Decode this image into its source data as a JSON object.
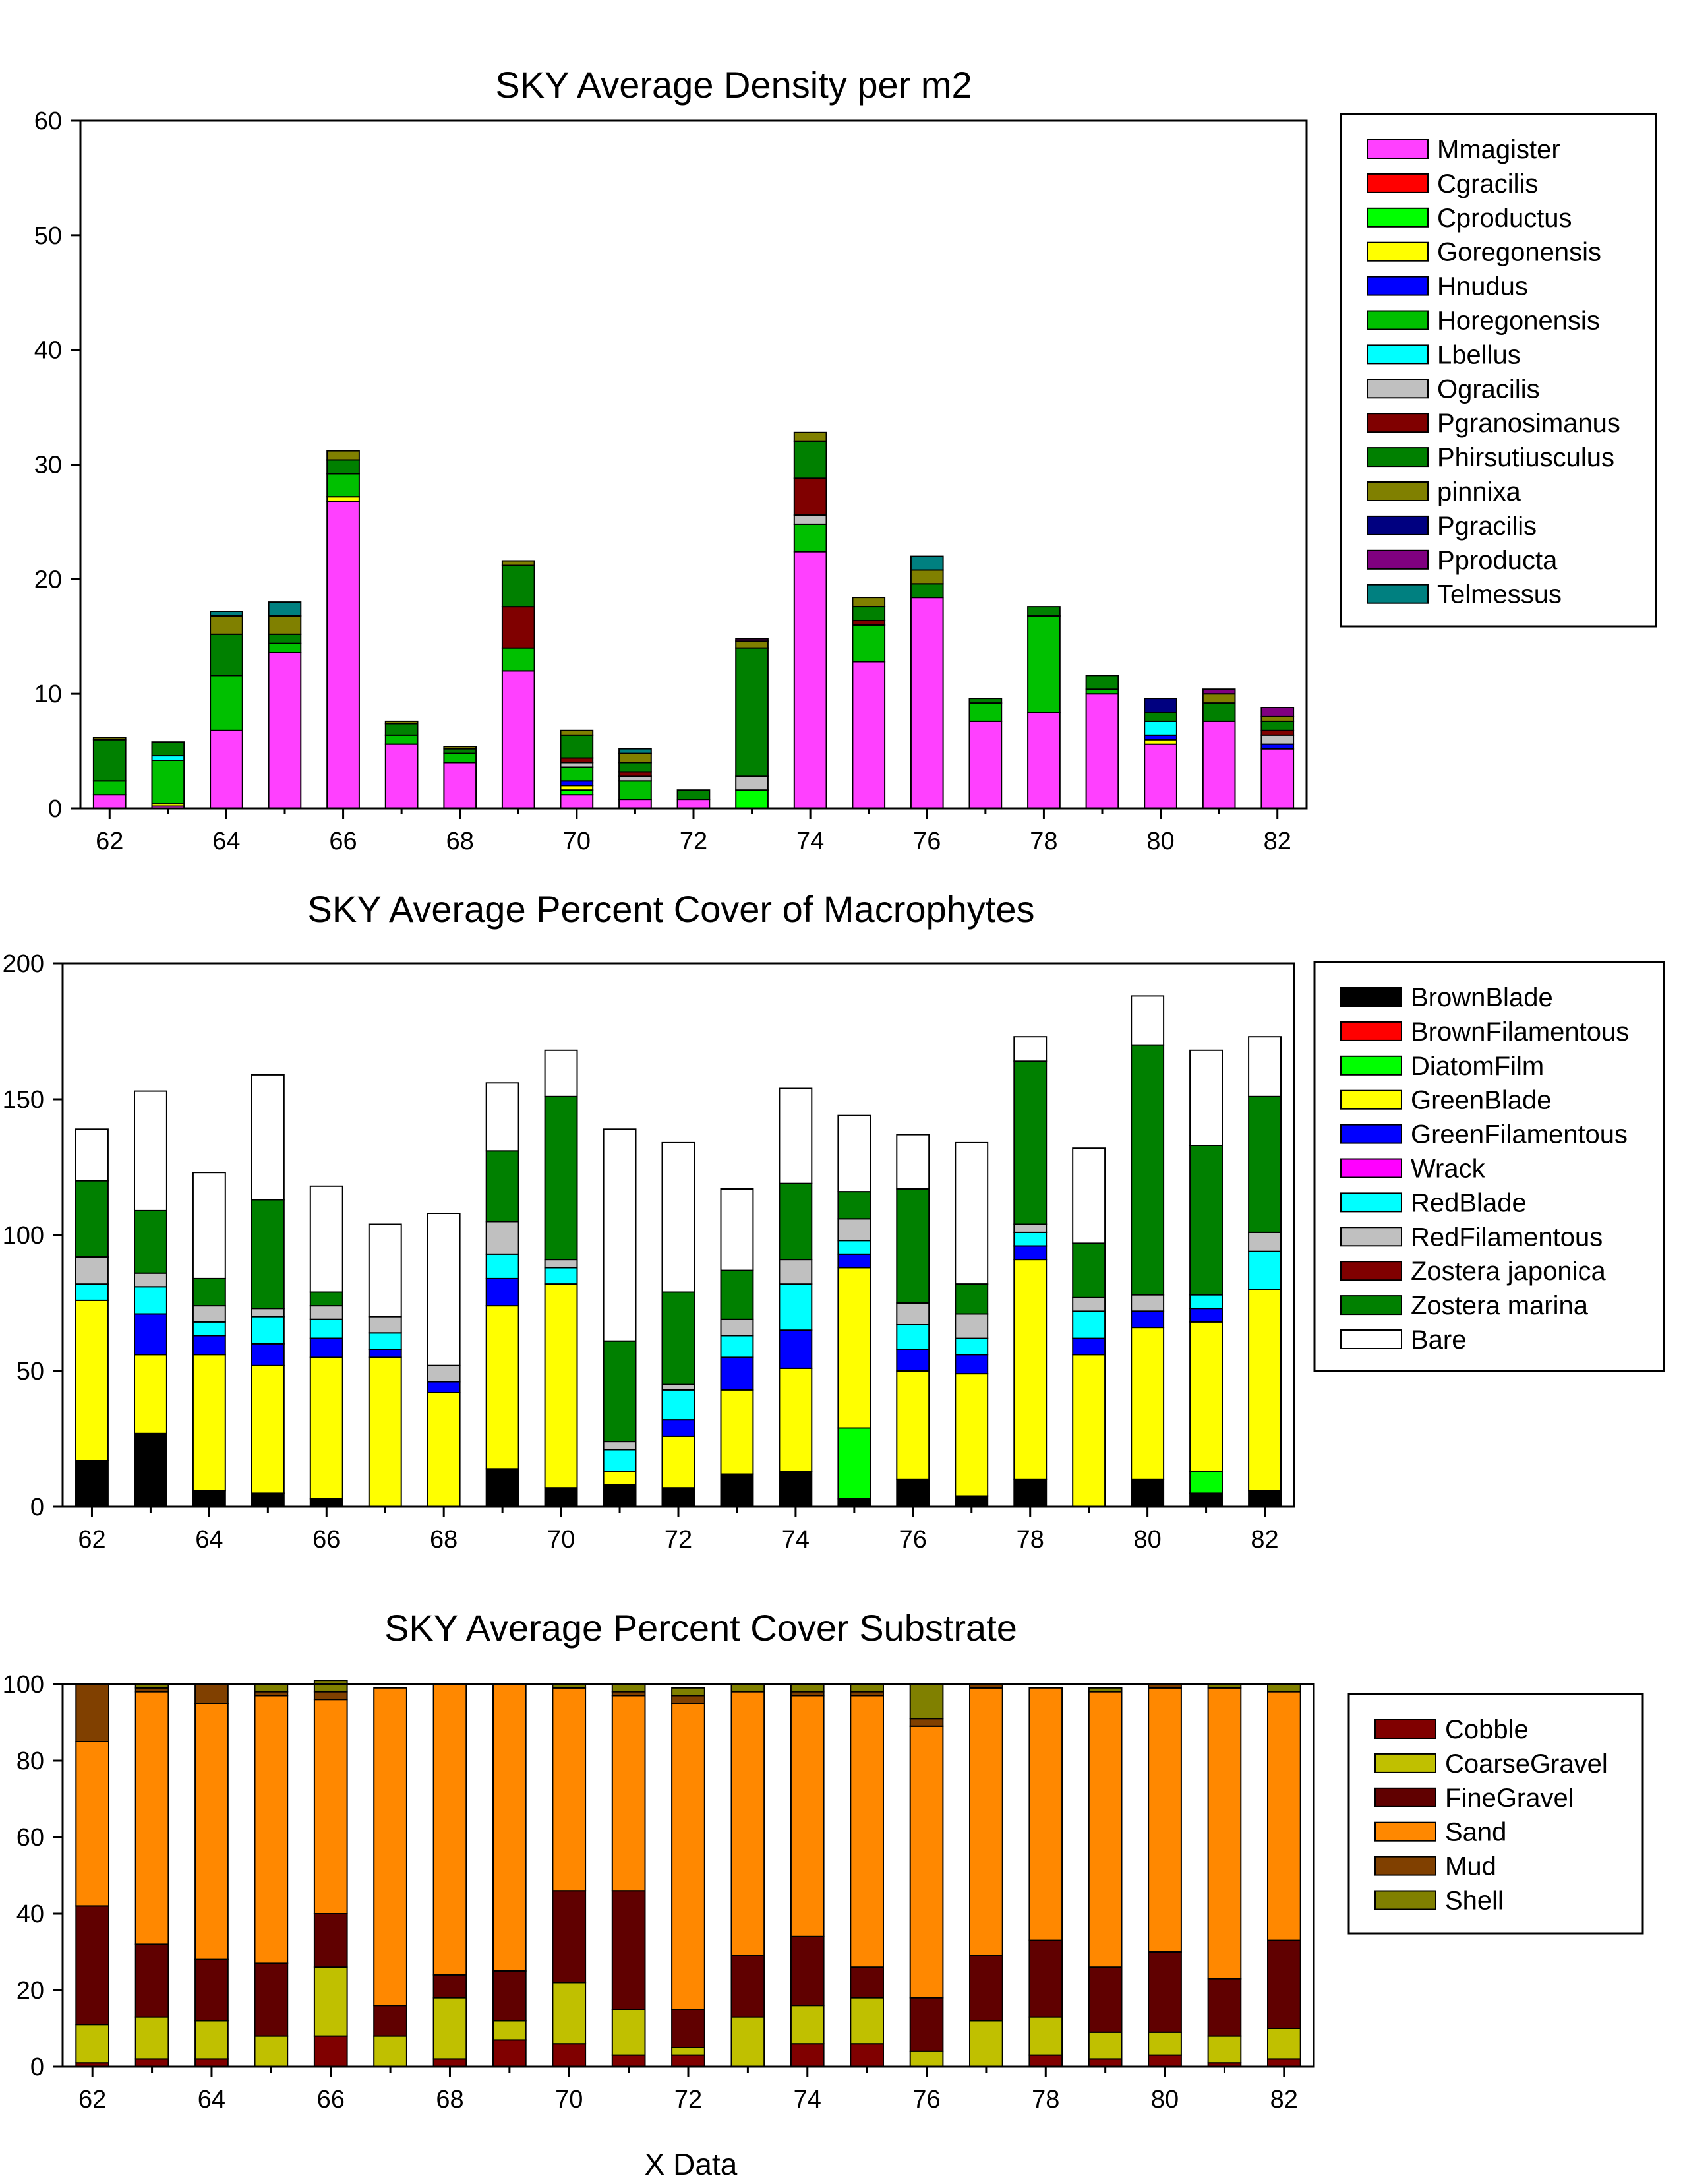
{
  "chart_data": [
    {
      "type": "bar",
      "stacked": true,
      "title": "SKY Average Density per m2",
      "xlabel": "",
      "ylabel": "",
      "x": [
        62,
        63,
        64,
        65,
        66,
        67,
        68,
        69,
        70,
        71,
        72,
        73,
        74,
        75,
        76,
        77,
        78,
        79,
        80,
        81,
        82
      ],
      "xticks": [
        62,
        64,
        66,
        68,
        70,
        72,
        74,
        76,
        78,
        80,
        82
      ],
      "xlim": [
        61.5,
        82.5
      ],
      "ylim": [
        0,
        60
      ],
      "yticks": [
        0,
        10,
        20,
        30,
        40,
        50,
        60
      ],
      "legend_position": "right",
      "series": [
        {
          "name": "Mmagister",
          "color": "#FF40FF",
          "values": [
            1.2,
            0.2,
            6.8,
            13.6,
            26.8,
            5.6,
            4.0,
            12.0,
            1.2,
            0.8,
            0.8,
            0,
            22.4,
            12.8,
            18.4,
            7.6,
            8.4,
            10.0,
            5.6,
            7.6,
            5.2
          ]
        },
        {
          "name": "Cgracilis",
          "color": "#FF0000",
          "values": [
            0,
            0,
            0,
            0,
            0,
            0,
            0,
            0,
            0,
            0,
            0,
            0,
            0,
            0,
            0,
            0,
            0,
            0,
            0,
            0,
            0
          ]
        },
        {
          "name": "Cproductus",
          "color": "#00FF00",
          "values": [
            0,
            0,
            0,
            0,
            0,
            0,
            0,
            0,
            0.4,
            0,
            0,
            1.6,
            0,
            0,
            0,
            0,
            0,
            0,
            0,
            0,
            0
          ]
        },
        {
          "name": "Goregonensis",
          "color": "#FFFF00",
          "values": [
            0,
            0.2,
            0,
            0,
            0.4,
            0,
            0,
            0,
            0.4,
            0,
            0,
            0,
            0,
            0,
            0,
            0,
            0,
            0,
            0.4,
            0,
            0
          ]
        },
        {
          "name": "Hnudus",
          "color": "#0000FF",
          "values": [
            0,
            0,
            0,
            0,
            0,
            0,
            0,
            0,
            0.4,
            0,
            0,
            0,
            0,
            0,
            0,
            0,
            0,
            0,
            0.4,
            0,
            0.4
          ]
        },
        {
          "name": "Horegonensis",
          "color": "#00C000",
          "values": [
            1.2,
            3.8,
            4.8,
            0.8,
            2.0,
            0.8,
            0.8,
            2.0,
            1.2,
            1.6,
            0,
            0,
            2.4,
            3.2,
            0,
            1.6,
            8.4,
            0.4,
            0,
            0,
            0
          ]
        },
        {
          "name": "Lbellus",
          "color": "#00FFFF",
          "values": [
            0,
            0.4,
            0,
            0,
            0,
            0,
            0,
            0,
            0,
            0,
            0,
            0,
            0,
            0,
            0,
            0,
            0,
            0,
            1.2,
            0,
            0
          ]
        },
        {
          "name": "Ogracilis",
          "color": "#C0C0C0",
          "values": [
            0,
            0,
            0,
            0,
            0,
            0,
            0,
            0,
            0.4,
            0.4,
            0,
            1.2,
            0.8,
            0,
            0,
            0,
            0,
            0,
            0,
            0,
            0.8
          ]
        },
        {
          "name": "Pgranosimanus",
          "color": "#800000",
          "values": [
            0,
            0,
            0,
            0,
            0,
            0,
            0,
            3.6,
            0.4,
            0.4,
            0,
            0,
            3.2,
            0.4,
            0,
            0,
            0,
            0,
            0,
            0,
            0.4
          ]
        },
        {
          "name": "Phirsutiusculus",
          "color": "#008000",
          "values": [
            3.6,
            1.2,
            3.6,
            0.8,
            1.2,
            1.0,
            0.4,
            3.6,
            2.0,
            0.8,
            0.8,
            11.2,
            3.2,
            1.2,
            1.2,
            0.4,
            0.8,
            1.2,
            0.8,
            1.6,
            0.8
          ]
        },
        {
          "name": "pinnixa",
          "color": "#808000",
          "values": [
            0.2,
            0,
            1.6,
            1.6,
            0.8,
            0.2,
            0.2,
            0.4,
            0.4,
            0.8,
            0,
            0.6,
            0.8,
            0.8,
            1.2,
            0,
            0,
            0,
            0,
            0.8,
            0.4
          ]
        },
        {
          "name": "Pgracilis",
          "color": "#000080",
          "values": [
            0,
            0,
            0,
            0,
            0,
            0,
            0,
            0,
            0,
            0,
            0,
            0,
            0,
            0,
            0,
            0,
            0,
            0,
            1.2,
            0,
            0
          ]
        },
        {
          "name": "Pproducta",
          "color": "#800080",
          "values": [
            0,
            0,
            0,
            0,
            0,
            0,
            0,
            0,
            0,
            0,
            0,
            0.2,
            0,
            0,
            0,
            0,
            0,
            0,
            0,
            0.4,
            0.8
          ]
        },
        {
          "name": "Telmessus",
          "color": "#008080",
          "values": [
            0,
            0,
            0.4,
            1.2,
            0,
            0,
            0,
            0,
            0,
            0.4,
            0,
            0,
            0,
            0,
            1.2,
            0,
            0,
            0,
            0,
            0,
            0
          ]
        }
      ]
    },
    {
      "type": "bar",
      "stacked": true,
      "title": "SKY Average Percent Cover of Macrophytes",
      "xlabel": "",
      "ylabel": "",
      "x": [
        62,
        63,
        64,
        65,
        66,
        67,
        68,
        69,
        70,
        71,
        72,
        73,
        74,
        75,
        76,
        77,
        78,
        79,
        80,
        81,
        82
      ],
      "xticks": [
        62,
        64,
        66,
        68,
        70,
        72,
        74,
        76,
        78,
        80,
        82
      ],
      "xlim": [
        61.5,
        82.5
      ],
      "ylim": [
        0,
        200
      ],
      "yticks": [
        0,
        50,
        100,
        150,
        200
      ],
      "legend_position": "right",
      "series": [
        {
          "name": "BrownBlade",
          "color": "#000000",
          "values": [
            17,
            27,
            6,
            5,
            3,
            0,
            0,
            14,
            7,
            8,
            7,
            12,
            13,
            3,
            10,
            4,
            10,
            0,
            10,
            5,
            6
          ]
        },
        {
          "name": "BrownFilamentous",
          "color": "#FF0000",
          "values": [
            0,
            0,
            0,
            0,
            0,
            0,
            0,
            0,
            0,
            0,
            0,
            0,
            0,
            0,
            0,
            0,
            0,
            0,
            0,
            0,
            0
          ]
        },
        {
          "name": "DiatomFilm",
          "color": "#00FF00",
          "values": [
            0,
            0,
            0,
            0,
            0,
            0,
            0,
            0,
            0,
            0,
            0,
            0,
            0,
            26,
            0,
            0,
            0,
            0,
            0,
            8,
            0
          ]
        },
        {
          "name": "GreenBlade",
          "color": "#FFFF00",
          "values": [
            59,
            29,
            50,
            47,
            52,
            55,
            42,
            60,
            75,
            5,
            19,
            31,
            38,
            59,
            40,
            45,
            81,
            56,
            56,
            55,
            74
          ]
        },
        {
          "name": "GreenFilamentous",
          "color": "#0000FF",
          "values": [
            0,
            15,
            7,
            8,
            7,
            3,
            4,
            10,
            0,
            0,
            6,
            12,
            14,
            5,
            8,
            7,
            5,
            6,
            6,
            5,
            0
          ]
        },
        {
          "name": "Wrack",
          "color": "#FF00FF",
          "values": [
            0,
            0,
            0,
            0,
            0,
            0,
            0,
            0,
            0,
            0,
            0,
            0,
            0,
            0,
            0,
            0,
            0,
            0,
            0,
            0,
            0
          ]
        },
        {
          "name": "RedBlade",
          "color": "#00FFFF",
          "values": [
            6,
            10,
            5,
            10,
            7,
            6,
            0,
            9,
            6,
            8,
            11,
            8,
            17,
            5,
            9,
            6,
            5,
            10,
            0,
            5,
            14
          ]
        },
        {
          "name": "RedFilamentous",
          "color": "#C0C0C0",
          "values": [
            10,
            5,
            6,
            3,
            5,
            6,
            6,
            12,
            3,
            3,
            2,
            6,
            9,
            8,
            8,
            9,
            3,
            5,
            6,
            0,
            7
          ]
        },
        {
          "name": "Zostera japonica",
          "color": "#800000",
          "values": [
            0,
            0,
            0,
            0,
            0,
            0,
            0,
            0,
            0,
            0,
            0,
            0,
            0,
            0,
            0,
            0,
            0,
            0,
            0,
            0,
            0
          ]
        },
        {
          "name": "Zostera marina",
          "color": "#008000",
          "values": [
            28,
            23,
            10,
            40,
            5,
            0,
            0,
            26,
            60,
            37,
            34,
            18,
            28,
            10,
            42,
            11,
            60,
            20,
            92,
            55,
            50
          ]
        },
        {
          "name": "Bare",
          "color": "#FFFFFF",
          "values": [
            19,
            44,
            39,
            46,
            39,
            34,
            56,
            25,
            17,
            78,
            55,
            30,
            35,
            28,
            20,
            52,
            9,
            35,
            18,
            35,
            22
          ]
        }
      ]
    },
    {
      "type": "bar",
      "stacked": true,
      "title": "SKY Average Percent Cover Substrate",
      "xlabel": "X Data",
      "ylabel": "",
      "x": [
        62,
        63,
        64,
        65,
        66,
        67,
        68,
        69,
        70,
        71,
        72,
        73,
        74,
        75,
        76,
        77,
        78,
        79,
        80,
        81,
        82
      ],
      "xticks": [
        62,
        64,
        66,
        68,
        70,
        72,
        74,
        76,
        78,
        80,
        82
      ],
      "xlim": [
        61.5,
        82.5
      ],
      "ylim": [
        0,
        100
      ],
      "yticks": [
        0,
        20,
        40,
        60,
        80,
        100
      ],
      "legend_position": "right",
      "series": [
        {
          "name": "Cobble",
          "color": "#800000",
          "values": [
            1,
            2,
            2,
            0,
            8,
            0,
            2,
            7,
            6,
            3,
            3,
            0,
            6,
            6,
            0,
            0,
            3,
            2,
            3,
            1,
            2
          ]
        },
        {
          "name": "CoarseGravel",
          "color": "#C0C000",
          "values": [
            10,
            11,
            10,
            8,
            18,
            8,
            16,
            5,
            16,
            12,
            2,
            13,
            10,
            12,
            4,
            12,
            10,
            7,
            6,
            7,
            8
          ]
        },
        {
          "name": "FineGravel",
          "color": "#600000",
          "values": [
            31,
            19,
            16,
            19,
            14,
            8,
            6,
            13,
            24,
            31,
            10,
            16,
            18,
            8,
            14,
            17,
            20,
            17,
            21,
            15,
            23
          ]
        },
        {
          "name": "Sand",
          "color": "#FF8800",
          "values": [
            43,
            66,
            67,
            70,
            56,
            83,
            76,
            75,
            53,
            51,
            80,
            69,
            63,
            71,
            71,
            70,
            66,
            72,
            69,
            76,
            65
          ]
        },
        {
          "name": "Mud",
          "color": "#804000",
          "values": [
            15,
            1,
            5,
            1,
            2,
            0,
            0,
            0,
            0,
            1,
            2,
            0,
            1,
            1,
            2,
            1,
            0,
            0,
            1,
            0,
            0
          ]
        },
        {
          "name": "Shell",
          "color": "#808000",
          "values": [
            0,
            1,
            0,
            2,
            3,
            0,
            0,
            0,
            1,
            2,
            2,
            2,
            2,
            2,
            9,
            0,
            0,
            1,
            0,
            1,
            2
          ]
        }
      ]
    }
  ]
}
